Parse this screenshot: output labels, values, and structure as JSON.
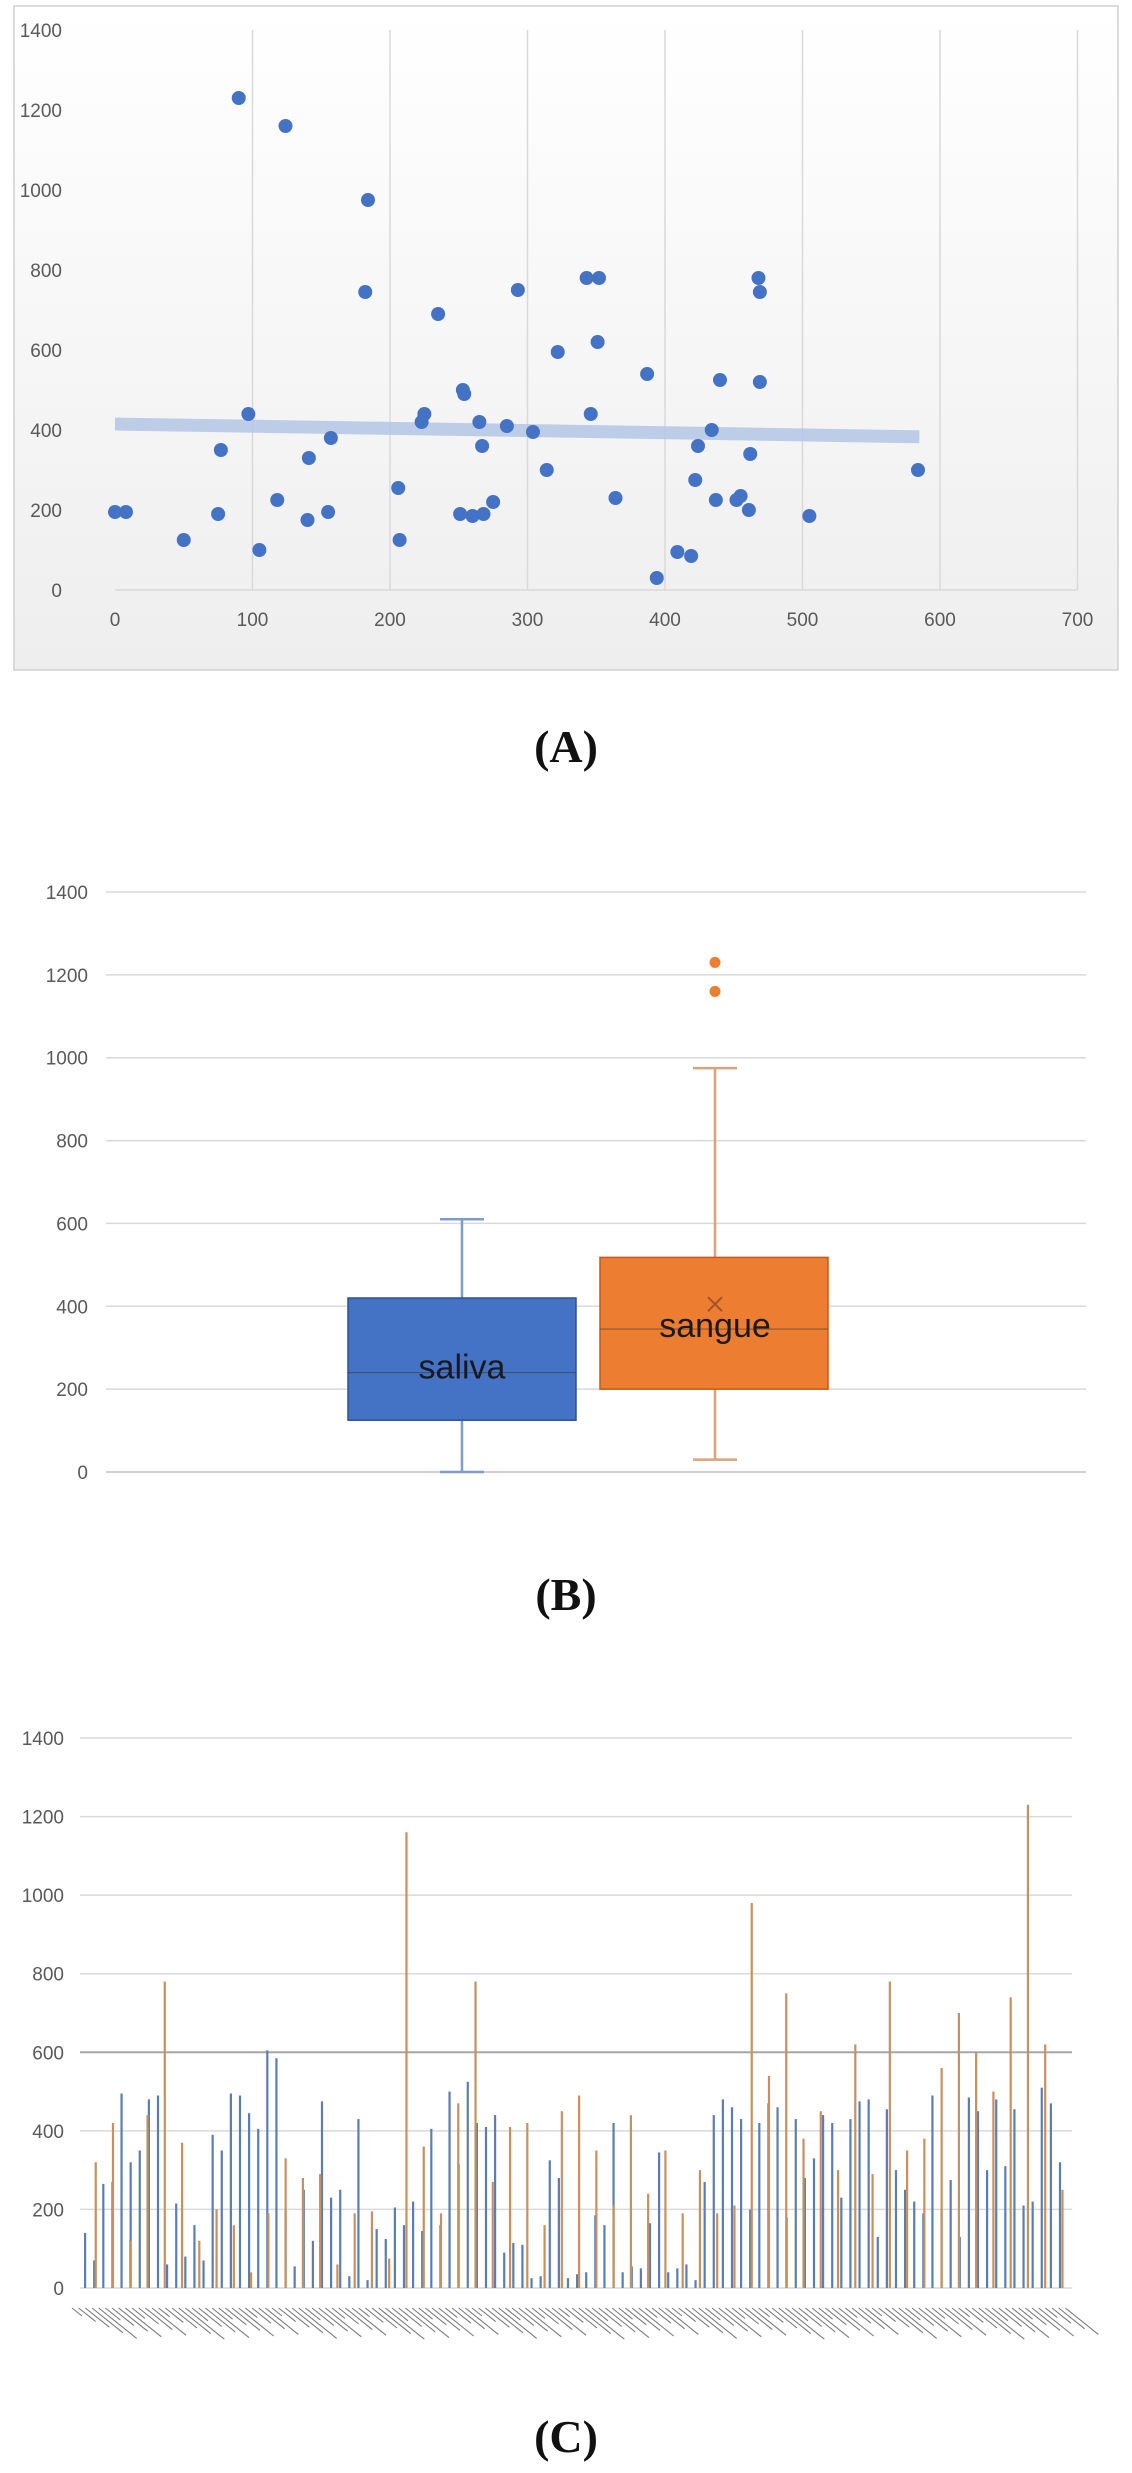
{
  "captions": {
    "a": "(A)",
    "b": "(B)",
    "c": "(C)"
  },
  "colors": {
    "blue": "#4472C4",
    "orange": "#ED7D31",
    "trend": "#b4c7e7",
    "grid": "#d9d9d9",
    "axisText": "#595959",
    "bar_blue": "#5B7DB5",
    "bar_orange": "#C98F5C"
  },
  "chart_data": [
    {
      "type": "scatter",
      "title": "",
      "xlabel": "",
      "ylabel": "",
      "xlim": [
        0,
        700
      ],
      "ylim": [
        0,
        1400
      ],
      "x_ticks": [
        0,
        100,
        200,
        300,
        400,
        500,
        600,
        700
      ],
      "y_ticks": [
        0,
        200,
        400,
        600,
        800,
        1000,
        1200,
        1400
      ],
      "grid": "vertical",
      "trendline": {
        "x0": 0,
        "y0": 415,
        "x1": 585,
        "y1": 383
      },
      "points": [
        [
          0,
          195
        ],
        [
          8,
          195
        ],
        [
          50,
          125
        ],
        [
          75,
          190
        ],
        [
          77,
          350
        ],
        [
          90,
          1230
        ],
        [
          97,
          440
        ],
        [
          105,
          100
        ],
        [
          118,
          225
        ],
        [
          124,
          1160
        ],
        [
          140,
          175
        ],
        [
          141,
          330
        ],
        [
          155,
          195
        ],
        [
          157,
          380
        ],
        [
          182,
          745
        ],
        [
          184,
          975
        ],
        [
          206,
          255
        ],
        [
          207,
          125
        ],
        [
          223,
          420
        ],
        [
          225,
          440
        ],
        [
          235,
          690
        ],
        [
          251,
          190
        ],
        [
          253,
          500
        ],
        [
          254,
          490
        ],
        [
          260,
          185
        ],
        [
          265,
          420
        ],
        [
          267,
          360
        ],
        [
          268,
          190
        ],
        [
          275,
          220
        ],
        [
          285,
          410
        ],
        [
          293,
          750
        ],
        [
          304,
          395
        ],
        [
          314,
          300
        ],
        [
          322,
          595
        ],
        [
          343,
          780
        ],
        [
          346,
          440
        ],
        [
          351,
          620
        ],
        [
          352,
          780
        ],
        [
          364,
          230
        ],
        [
          387,
          540
        ],
        [
          394,
          30
        ],
        [
          409,
          95
        ],
        [
          419,
          85
        ],
        [
          422,
          275
        ],
        [
          424,
          360
        ],
        [
          434,
          400
        ],
        [
          437,
          225
        ],
        [
          440,
          525
        ],
        [
          452,
          225
        ],
        [
          455,
          235
        ],
        [
          461,
          200
        ],
        [
          462,
          340
        ],
        [
          468,
          780
        ],
        [
          469,
          745
        ],
        [
          469,
          520
        ],
        [
          505,
          185
        ],
        [
          584,
          300
        ]
      ]
    },
    {
      "type": "box",
      "title": "",
      "ylim": [
        0,
        1400
      ],
      "y_ticks": [
        0,
        200,
        400,
        600,
        800,
        1000,
        1200,
        1400
      ],
      "grid": "horizontal",
      "series": [
        {
          "name": "saliva",
          "min": 0,
          "q1": 125,
          "median": 240,
          "q3": 420,
          "max": 610,
          "outliers": []
        },
        {
          "name": "sangue",
          "min": 30,
          "q1": 200,
          "median": 345,
          "q3": 518,
          "max": 975,
          "mean": 405,
          "outliers": [
            1160,
            1230
          ]
        }
      ]
    },
    {
      "type": "bar",
      "title": "",
      "ylim": [
        0,
        1400
      ],
      "y_ticks": [
        0,
        200,
        400,
        600,
        800,
        1000,
        1200,
        1400
      ],
      "grid": "horizontal",
      "x_tick_labels_illegible": true,
      "series": [
        {
          "name": "",
          "values": [
            140,
            70,
            265,
            270,
            495,
            320,
            350,
            480,
            490,
            60,
            215,
            80,
            160,
            70,
            390,
            350,
            495,
            490,
            445,
            405,
            605,
            585,
            200,
            55,
            250,
            120,
            475,
            230,
            250,
            30,
            430,
            20,
            150,
            125,
            205,
            160,
            220,
            145,
            405,
            160,
            500,
            315,
            525,
            420,
            410,
            440,
            90,
            115,
            110,
            25,
            30,
            325,
            280,
            25,
            35,
            40,
            185,
            160,
            420,
            40,
            55,
            50,
            165,
            345,
            40,
            50,
            60,
            20,
            270,
            440,
            480,
            460,
            430,
            200,
            420,
            470,
            460,
            180,
            430,
            280,
            330,
            440,
            420,
            230,
            430,
            475,
            480,
            130,
            455,
            300,
            250,
            220,
            190,
            490,
            200,
            275,
            130,
            485,
            450,
            300,
            480,
            310,
            455,
            210,
            220,
            510,
            470,
            320
          ]
        },
        {
          "name": "",
          "values": [
            320,
            420,
            120,
            440,
            780,
            370,
            120,
            200,
            160,
            40,
            190,
            330,
            280,
            290,
            60,
            190,
            195,
            75,
            1160,
            360,
            190,
            470,
            780,
            270,
            410,
            420,
            160,
            450,
            490,
            350,
            210,
            440,
            240,
            350,
            190,
            300,
            190,
            210,
            980,
            540,
            750,
            380,
            450,
            300,
            620,
            290,
            780,
            350,
            380,
            560,
            700,
            600,
            500,
            740,
            1230,
            620,
            250
          ]
        }
      ]
    }
  ]
}
